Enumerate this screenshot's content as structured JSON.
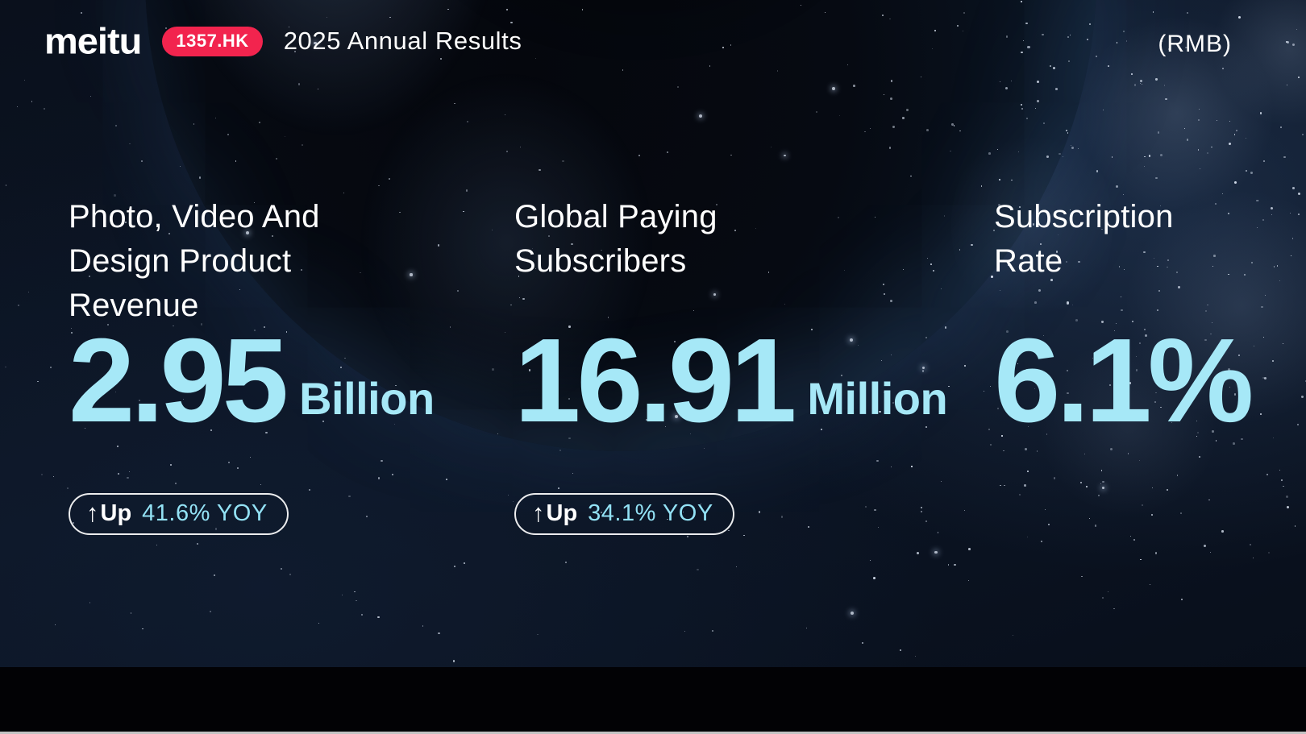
{
  "header": {
    "logo_text": "meitu",
    "ticker": "1357.HK",
    "title": "2025 Annual Results",
    "currency": "(RMB)"
  },
  "colors": {
    "accent_cyan": "#A6E8F7",
    "badge_change_cyan": "#93E2F5",
    "ticker_pink": "#F2244E",
    "text_white": "#FFFFFF",
    "background_navy": "#0C1524",
    "footer_black": "#020205"
  },
  "stats": [
    {
      "label_lines": [
        "Photo, Video And",
        "Design Product",
        "Revenue"
      ],
      "value": "2.95",
      "unit": "Billion",
      "badge": {
        "arrow": "↑",
        "prefix": "Up",
        "change": "41.6% YOY"
      }
    },
    {
      "label_lines": [
        "Global Paying",
        "Subscribers"
      ],
      "value": "16.91",
      "unit": "Million",
      "badge": {
        "arrow": "↑",
        "prefix": "Up",
        "change": "34.1% YOY"
      }
    },
    {
      "label_lines": [
        "Subscription",
        "Rate"
      ],
      "value": "6.1%",
      "unit": ""
    }
  ]
}
